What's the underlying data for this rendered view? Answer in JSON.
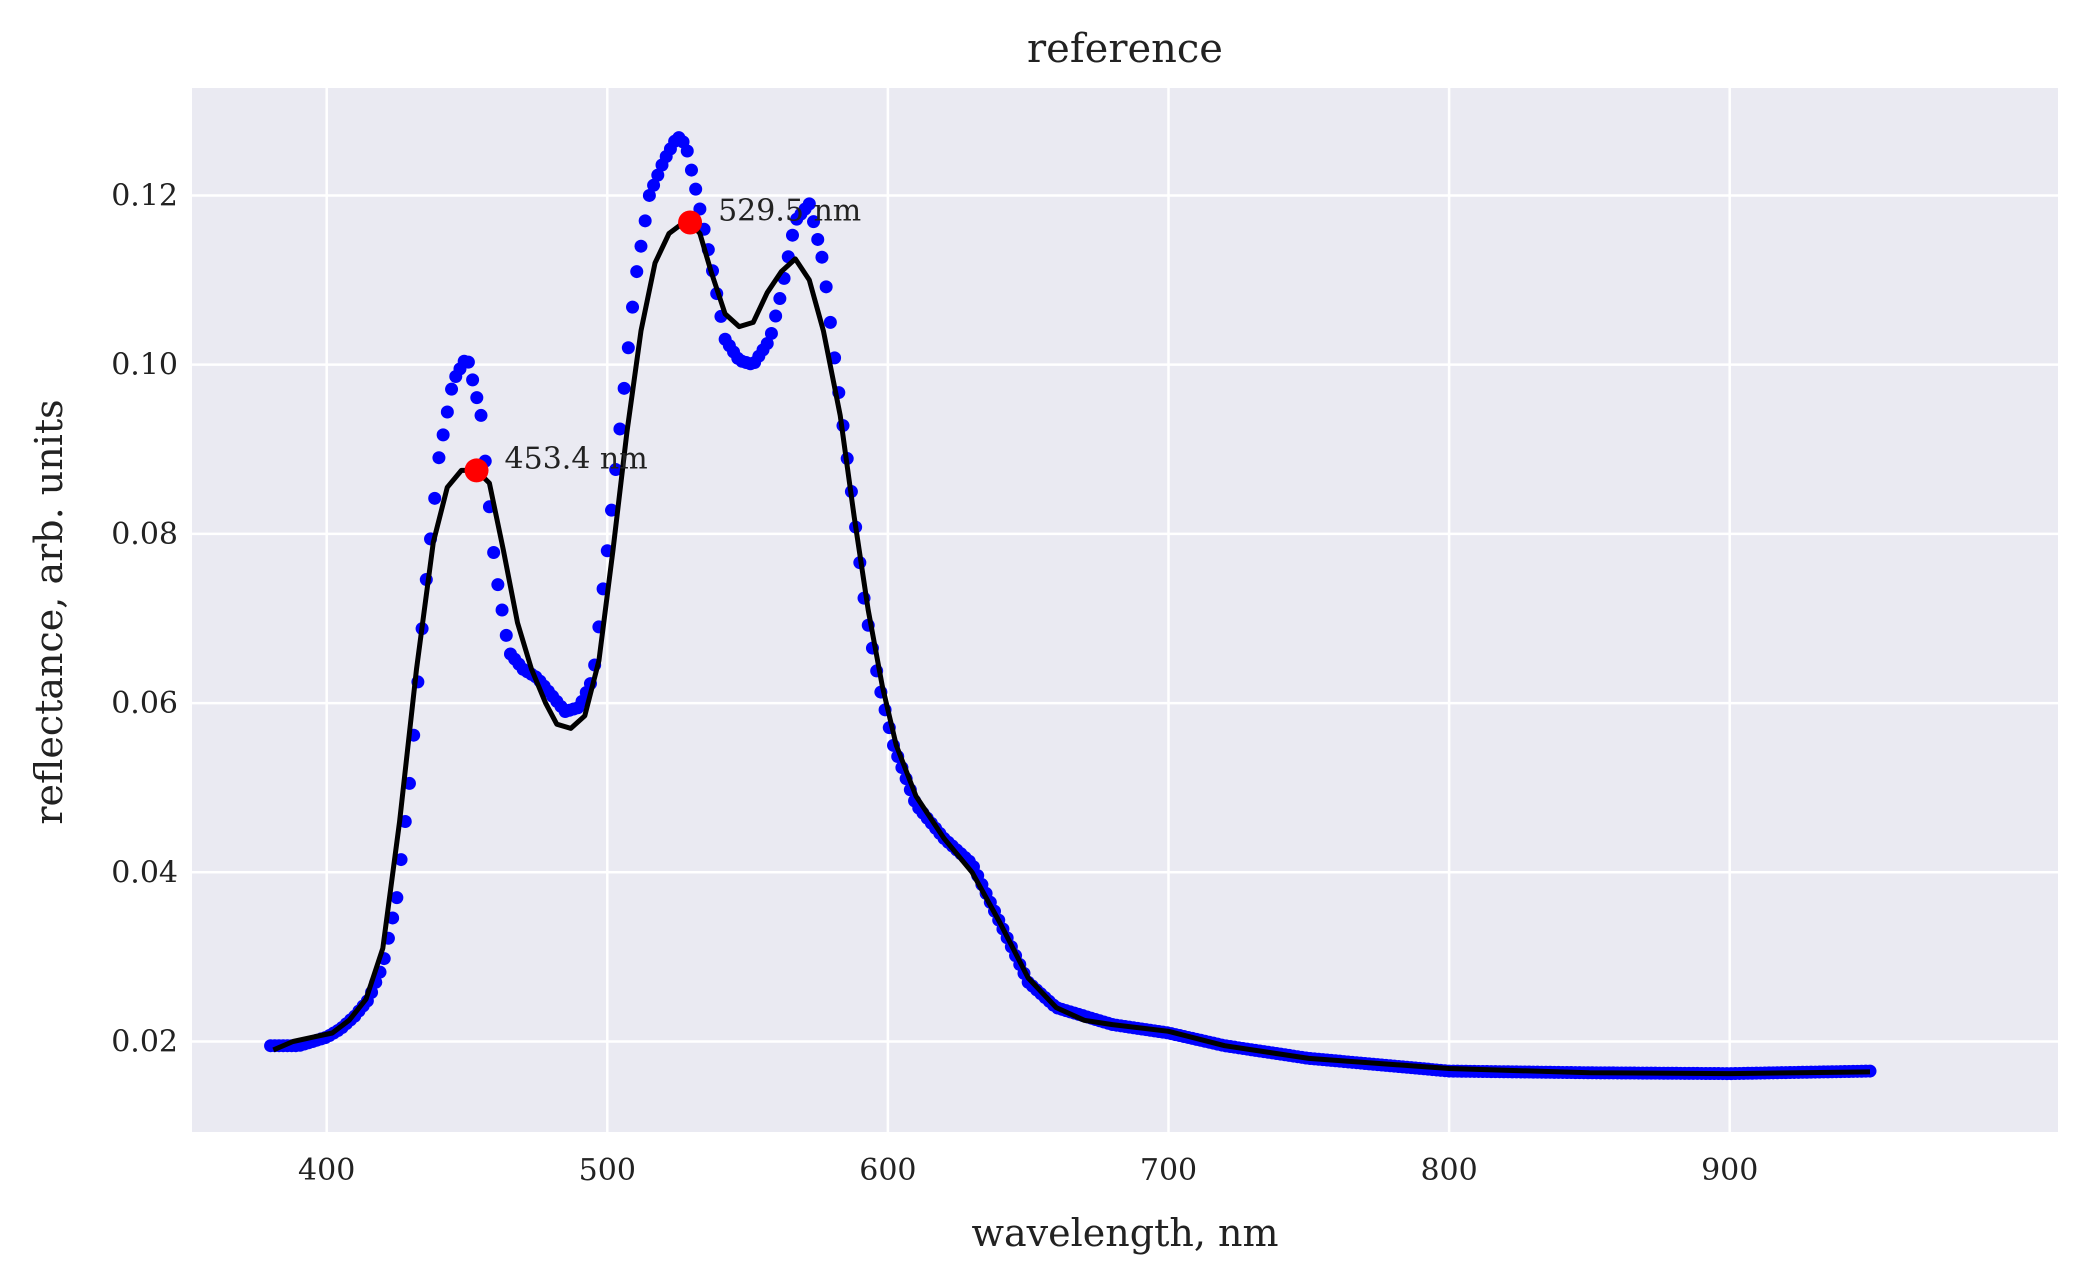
{
  "chart_data": {
    "type": "scatter",
    "title": "reference",
    "xlabel": "wavelength, nm",
    "ylabel": "reflectance, arb. units",
    "xlim": [
      352,
      1017
    ],
    "ylim": [
      0.0093,
      0.1327
    ],
    "grid": true,
    "x_ticks": [
      400,
      500,
      600,
      700,
      800,
      900
    ],
    "x_tick_labels": [
      "400",
      "500",
      "600",
      "700",
      "800",
      "900"
    ],
    "y_ticks": [
      0.02,
      0.04,
      0.06,
      0.08,
      0.1,
      0.12
    ],
    "y_tick_labels": [
      "0.02",
      "0.04",
      "0.06",
      "0.08",
      "0.10",
      "0.12"
    ],
    "colors": {
      "background": "#eaeaf2",
      "grid": "#ffffff",
      "points": "#0000ff",
      "fit": "#000000",
      "peaks": "#ff0000"
    },
    "series": [
      {
        "kind": "scatter-dense",
        "color": "#0000ff",
        "x": [
          380,
          390,
          400,
          405,
          410,
          415,
          420,
          425,
          430,
          435,
          440,
          445,
          450,
          455,
          460,
          465,
          470,
          475,
          480,
          485,
          490,
          495,
          500,
          505,
          510,
          515,
          520,
          525,
          528,
          532,
          537,
          542,
          547,
          552,
          558,
          562,
          567,
          572,
          577,
          582,
          587,
          592,
          597,
          602,
          610,
          620,
          630,
          640,
          650,
          660,
          680,
          700,
          720,
          750,
          800,
          850,
          900,
          950
        ],
        "y": [
          0.0195,
          0.0195,
          0.0205,
          0.0215,
          0.023,
          0.025,
          0.029,
          0.037,
          0.052,
          0.073,
          0.089,
          0.098,
          0.101,
          0.094,
          0.076,
          0.066,
          0.064,
          0.063,
          0.061,
          0.059,
          0.0595,
          0.063,
          0.078,
          0.094,
          0.11,
          0.12,
          0.124,
          0.127,
          0.126,
          0.12,
          0.112,
          0.103,
          0.1005,
          0.1,
          0.103,
          0.1085,
          0.117,
          0.119,
          0.112,
          0.098,
          0.085,
          0.071,
          0.062,
          0.055,
          0.048,
          0.044,
          0.041,
          0.034,
          0.027,
          0.024,
          0.022,
          0.021,
          0.0195,
          0.018,
          0.0165,
          0.0163,
          0.0162,
          0.0165
        ]
      },
      {
        "kind": "line",
        "color": "#000000",
        "x": [
          381,
          388,
          395,
          402,
          408,
          414,
          420,
          426,
          432,
          438,
          443,
          448,
          453.4,
          458,
          463,
          468,
          473,
          478,
          482,
          487,
          492,
          497,
          502,
          507,
          512,
          517,
          522,
          526,
          529.5,
          533,
          537,
          542,
          547,
          552,
          557,
          562,
          567,
          572,
          577,
          583,
          588,
          593,
          598,
          603,
          610,
          620,
          630,
          640,
          650,
          660,
          670,
          680,
          700,
          720,
          750,
          800,
          850,
          900,
          950
        ],
        "y": [
          0.019,
          0.02,
          0.0205,
          0.021,
          0.0225,
          0.025,
          0.031,
          0.046,
          0.064,
          0.079,
          0.0855,
          0.0875,
          0.0875,
          0.086,
          0.078,
          0.0695,
          0.064,
          0.06,
          0.0575,
          0.057,
          0.0585,
          0.065,
          0.078,
          0.092,
          0.104,
          0.112,
          0.1155,
          0.1165,
          0.1168,
          0.1155,
          0.111,
          0.106,
          0.1045,
          0.105,
          0.1085,
          0.111,
          0.1125,
          0.11,
          0.104,
          0.094,
          0.082,
          0.071,
          0.062,
          0.055,
          0.049,
          0.044,
          0.04,
          0.034,
          0.0275,
          0.024,
          0.0225,
          0.022,
          0.0212,
          0.0195,
          0.018,
          0.0168,
          0.0163,
          0.0162,
          0.0164
        ]
      }
    ],
    "peaks": [
      {
        "x": 453.4,
        "y": 0.0875,
        "label": "453.4 nm"
      },
      {
        "x": 529.5,
        "y": 0.1168,
        "label": "529.5 nm"
      }
    ]
  }
}
